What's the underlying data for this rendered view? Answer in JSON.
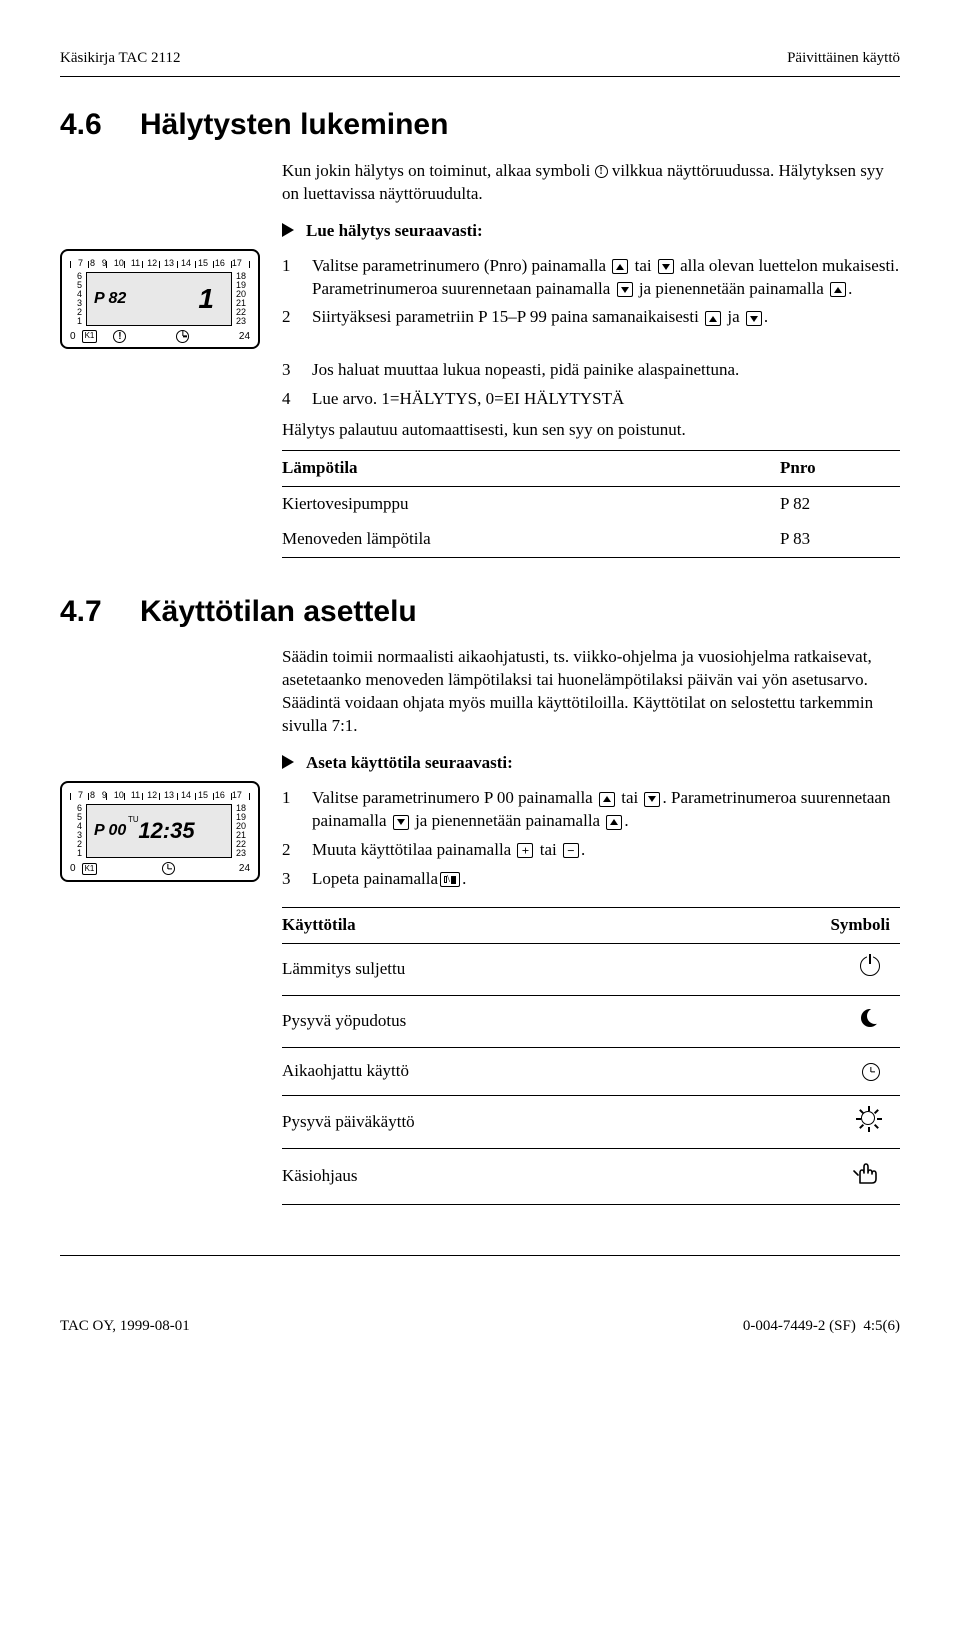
{
  "header": {
    "left": "Käsikirja TAC 2112",
    "right": "Päivittäinen käyttö"
  },
  "section46": {
    "num": "4.6",
    "title": "Hälytysten lukeminen",
    "intro1": "Kun jokin hälytys on toiminut, alkaa symboli ",
    "intro2": " vilkkua näyttöruudussa. Hälytyksen syy on luettavissa näyttöruudulta.",
    "lead": "Lue hälytys seuraavasti:",
    "device": {
      "top_ticks": [
        "7",
        "8",
        "9",
        "10",
        "11",
        "12",
        "13",
        "14",
        "15",
        "16",
        "17"
      ],
      "left_scale": [
        "6",
        "5",
        "4",
        "3",
        "2",
        "1",
        "0"
      ],
      "right_scale": [
        "18",
        "19",
        "20",
        "21",
        "22",
        "23",
        "24"
      ],
      "p_label": "P 82",
      "big_value": "1",
      "k_label": "K1"
    },
    "step1a": "Valitse parametrinumero (Pnro) painamalla ",
    "step1b": " tai ",
    "step1c": " alla olevan luettelon mukaisesti. Parametrinumeroa suurennetaan painamalla ",
    "step1d": " ja pienennetään painamalla ",
    "step1e": ".",
    "step2a": "Siirtyäksesi parametriin P 15–P 99 paina samanaikaisesti ",
    "step2b": " ja ",
    "step2c": ".",
    "step3": "Jos haluat muuttaa lukua nopeasti, pidä painike alaspainettuna.",
    "step4": "Lue arvo. 1=HÄLYTYS, 0=EI HÄLYTYSTÄ",
    "auto": "Hälytys palautuu automaattisesti, kun sen syy on poistunut.",
    "table": {
      "h1": "Lämpötila",
      "h2": "Pnro",
      "rows": [
        [
          "Kiertovesipumppu",
          "P 82"
        ],
        [
          "Menoveden lämpötila",
          "P 83"
        ]
      ]
    }
  },
  "section47": {
    "num": "4.7",
    "title": "Käyttötilan asettelu",
    "intro": "Säädin toimii normaalisti aikaohjatusti, ts. viikko-ohjelma ja vuosiohjelma ratkaisevat, asetetaanko menoveden lämpötilaksi tai huonelämpötilaksi päivän vai yön asetusarvo. Säädintä voidaan ohjata myös muilla käyttötiloilla. Käyttötilat on selostettu tarkemmin sivulla 7:1.",
    "lead": "Aseta käyttötila seuraavasti:",
    "device": {
      "top_ticks": [
        "7",
        "8",
        "9",
        "10",
        "11",
        "12",
        "13",
        "14",
        "15",
        "16",
        "17"
      ],
      "left_scale": [
        "6",
        "5",
        "4",
        "3",
        "2",
        "1",
        "0"
      ],
      "right_scale": [
        "18",
        "19",
        "20",
        "21",
        "22",
        "23",
        "24"
      ],
      "p_label": "P 00",
      "tu": "TU",
      "clock": "12:35",
      "k_label": "K1"
    },
    "step1a": "Valitse parametrinumero P 00 painamalla ",
    "step1b": " tai ",
    "step1c": ". Parametrinumeroa suurennetaan painamalla ",
    "step1d": " ja pienennetään painamalla ",
    "step1e": ".",
    "step2a": "Muuta käyttötilaa painamalla ",
    "step2b": " tai ",
    "step2c": ".",
    "step3a": "Lopeta painamalla",
    "step3b": ".",
    "table": {
      "h1": "Käyttötila",
      "h2": "Symboli",
      "rows": [
        "Lämmitys suljettu",
        "Pysyvä yöpudotus",
        "Aikaohjattu käyttö",
        "Pysyvä päiväkäyttö",
        "Käsiohjaus"
      ]
    }
  },
  "footer": {
    "left": "TAC OY, 1999-08-01",
    "mid": "0-004-7449-2 (SF)",
    "right": "4:5(6)"
  }
}
